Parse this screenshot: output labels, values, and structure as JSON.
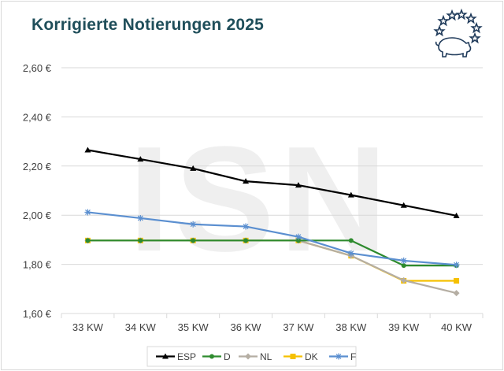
{
  "chart_data": {
    "type": "line",
    "title": "Korrigierte Notierungen 2025",
    "xlabel": "",
    "ylabel": "",
    "categories": [
      "33 KW",
      "34 KW",
      "35 KW",
      "36 KW",
      "37 KW",
      "38 KW",
      "39 KW",
      "40 KW"
    ],
    "yticks": [
      "1,60 €",
      "1,80 €",
      "2,00 €",
      "2,20 €",
      "2,40 €",
      "2,60 €"
    ],
    "ylim": [
      1.6,
      2.6
    ],
    "grid": "horizontal",
    "legend_position": "bottom",
    "watermark": "ISN",
    "series": [
      {
        "name": "ESP",
        "color": "#000000",
        "marker": "triangle",
        "values": [
          2.265,
          2.228,
          2.19,
          2.138,
          2.122,
          2.082,
          2.04,
          1.998
        ]
      },
      {
        "name": "D",
        "color": "#2e8b2e",
        "marker": "circle",
        "values": [
          1.897,
          1.897,
          1.897,
          1.897,
          1.897,
          1.897,
          1.795,
          1.795
        ]
      },
      {
        "name": "NL",
        "color": "#b5aea3",
        "marker": "diamond",
        "values": [
          1.897,
          1.897,
          1.897,
          1.897,
          1.897,
          1.835,
          1.735,
          1.683
        ]
      },
      {
        "name": "DK",
        "color": "#f5c000",
        "marker": "square",
        "values": [
          1.897,
          1.897,
          1.897,
          1.897,
          1.897,
          1.835,
          1.733,
          1.733
        ]
      },
      {
        "name": "F",
        "color": "#5b8fd0",
        "marker": "star",
        "values": [
          2.012,
          1.988,
          1.963,
          1.954,
          1.912,
          1.845,
          1.815,
          1.798
        ]
      }
    ]
  }
}
